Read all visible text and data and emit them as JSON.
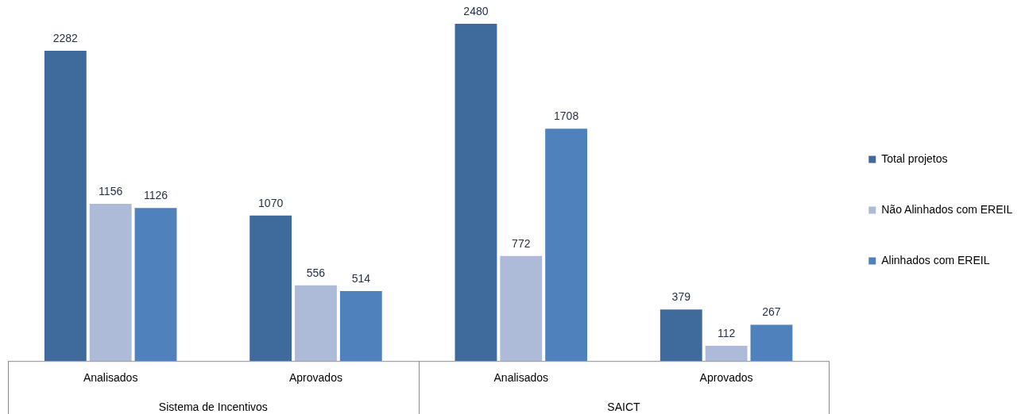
{
  "chart_data": {
    "type": "bar",
    "categories": [
      "Analisados",
      "Aprovados",
      "Analisados",
      "Aprovados"
    ],
    "series": [
      {
        "name": "Total projetos",
        "color": "#3f6a9c",
        "values": [
          2282,
          1070,
          2480,
          379
        ]
      },
      {
        "name": "Não Alinhados com EREIL",
        "color": "#adbbd8",
        "values": [
          1156,
          556,
          772,
          112
        ]
      },
      {
        "name": "Alinhados com EREIL",
        "color": "#4f81bd",
        "values": [
          1126,
          514,
          1708,
          267
        ]
      }
    ],
    "annotations": [
      "Sistema de Incentivos",
      "SAICT"
    ],
    "data_labels": true,
    "legend": "right",
    "grid": false,
    "tick_labels": "x"
  }
}
